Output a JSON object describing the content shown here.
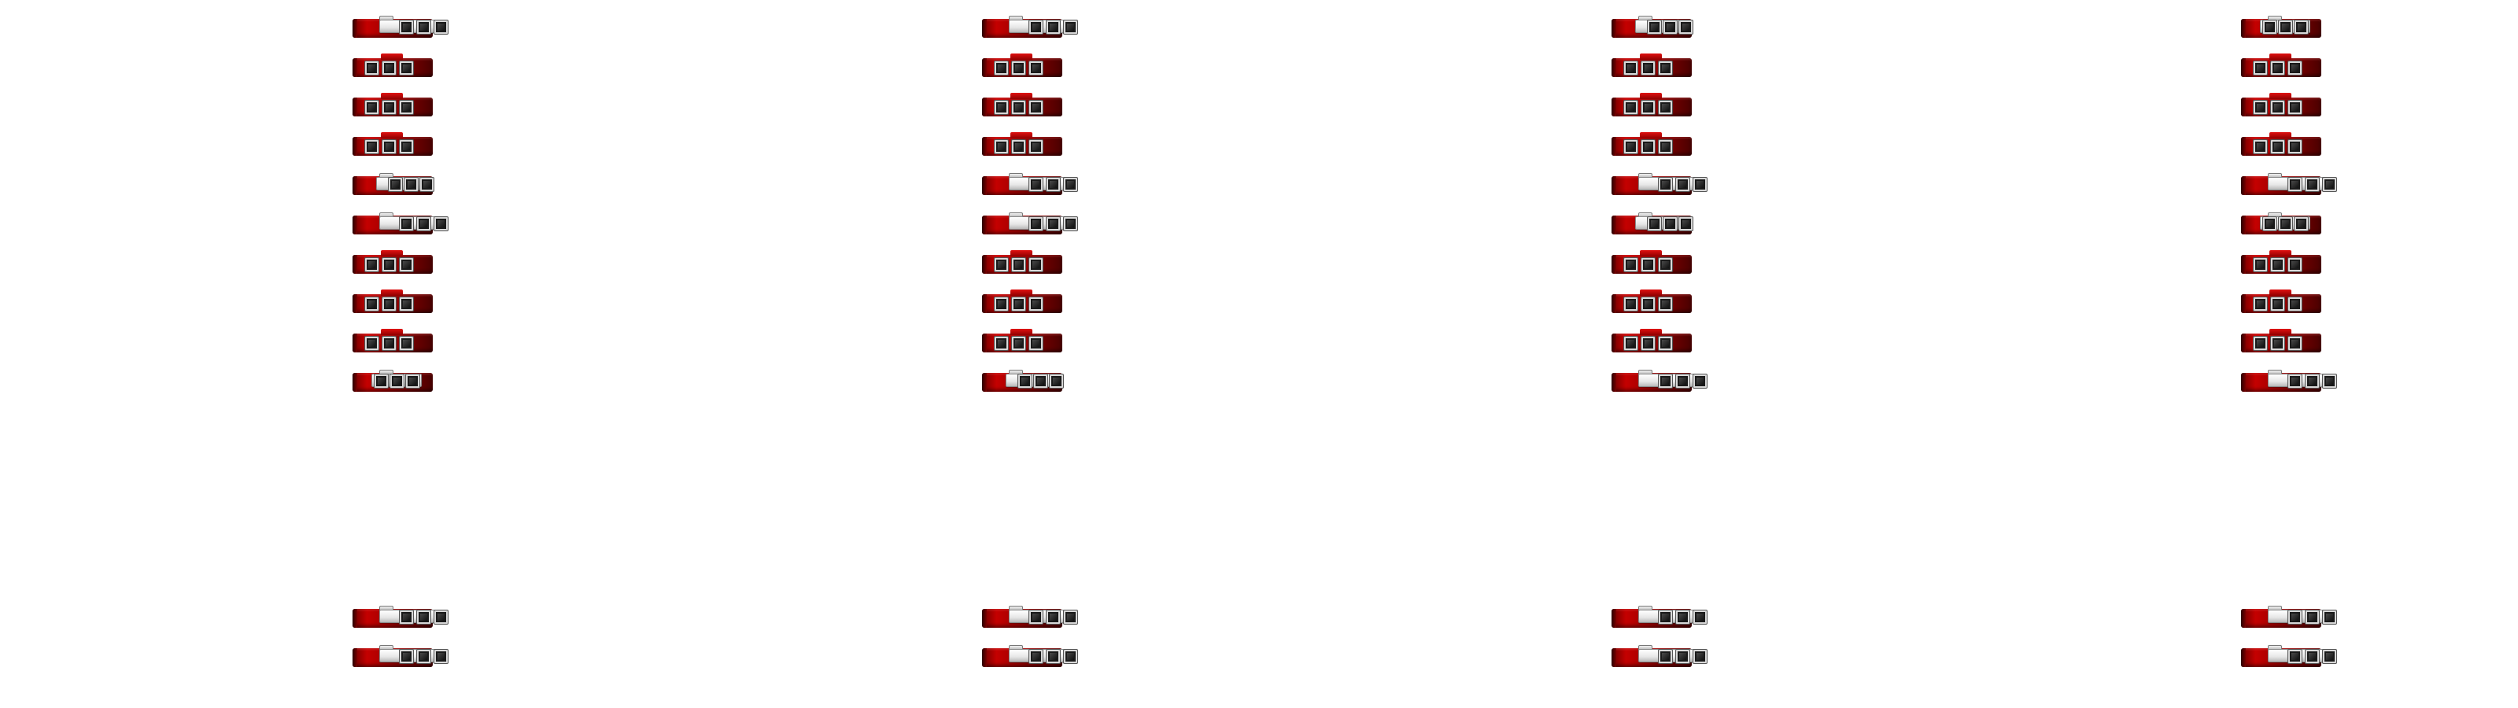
{
  "screen": {
    "background": "#ffffff"
  },
  "widget_style": {
    "case_color": "#b00000",
    "panel_color": "#e8e8e8",
    "button_color": "#1a1a1a",
    "icon": "red-case-with-three-square-buttons"
  },
  "columns": [
    {
      "name": "column-1",
      "rows": [
        "extended-right",
        "compact",
        "compact",
        "compact",
        "extended-mid",
        "extended-right",
        "compact",
        "compact",
        "compact",
        "extended-left",
        "extended-right",
        "extended-right"
      ]
    },
    {
      "name": "column-2",
      "rows": [
        "extended-right",
        "compact",
        "compact",
        "compact",
        "extended-right",
        "extended-right",
        "compact",
        "compact",
        "compact",
        "extended-mid",
        "extended-right",
        "extended-right"
      ]
    },
    {
      "name": "column-3",
      "rows": [
        "extended-mid",
        "compact",
        "compact",
        "compact",
        "extended-right",
        "extended-mid",
        "compact",
        "compact",
        "compact",
        "extended-right",
        "extended-right",
        "extended-right"
      ]
    },
    {
      "name": "column-4",
      "rows": [
        "extended-left",
        "compact",
        "compact",
        "compact",
        "extended-right",
        "extended-left",
        "compact",
        "compact",
        "compact",
        "extended-right",
        "extended-right",
        "extended-right"
      ]
    }
  ]
}
